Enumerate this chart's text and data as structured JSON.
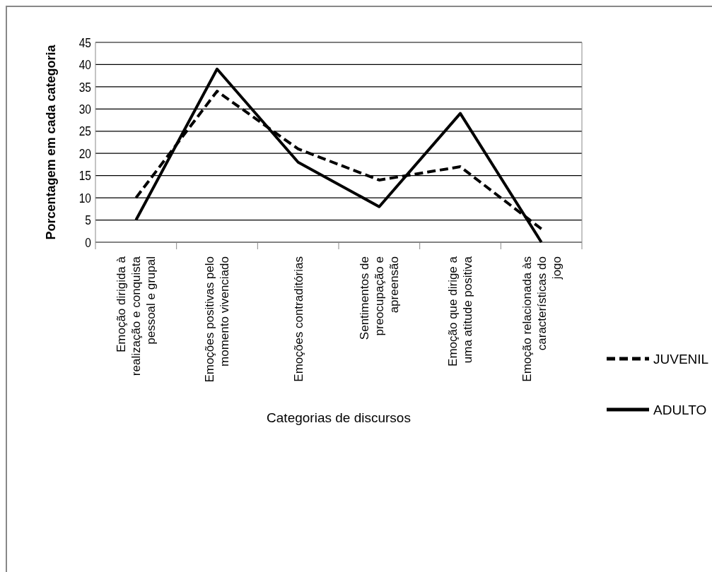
{
  "chart_data": {
    "type": "line",
    "xlabel": "Categorias de discursos",
    "ylabel": "Porcentagem em cada categoria",
    "categories": [
      "Emoção dirigida à realização e conquista pessoal e grupal",
      "Emoções positivas pelo momento vivenciado",
      "Emoções contraditórias",
      "Sentimentos de preocupação e apreensão",
      "Emoção que dirige a uma atitude positiva",
      "Emoção relacionada às características do jogo"
    ],
    "series": [
      {
        "name": "JUVENIL",
        "color": "#000000",
        "line_style": "dashed",
        "values": [
          10,
          34,
          21,
          14,
          17,
          3
        ]
      },
      {
        "name": "ADULTO",
        "color": "#000000",
        "line_style": "solid",
        "values": [
          5,
          39,
          18,
          8,
          29,
          0
        ]
      }
    ],
    "ylim": [
      0,
      45
    ],
    "yticks": [
      0,
      5,
      10,
      15,
      20,
      25,
      30,
      35,
      40,
      45
    ],
    "grid": "y",
    "legend": "right",
    "marker": "none"
  }
}
